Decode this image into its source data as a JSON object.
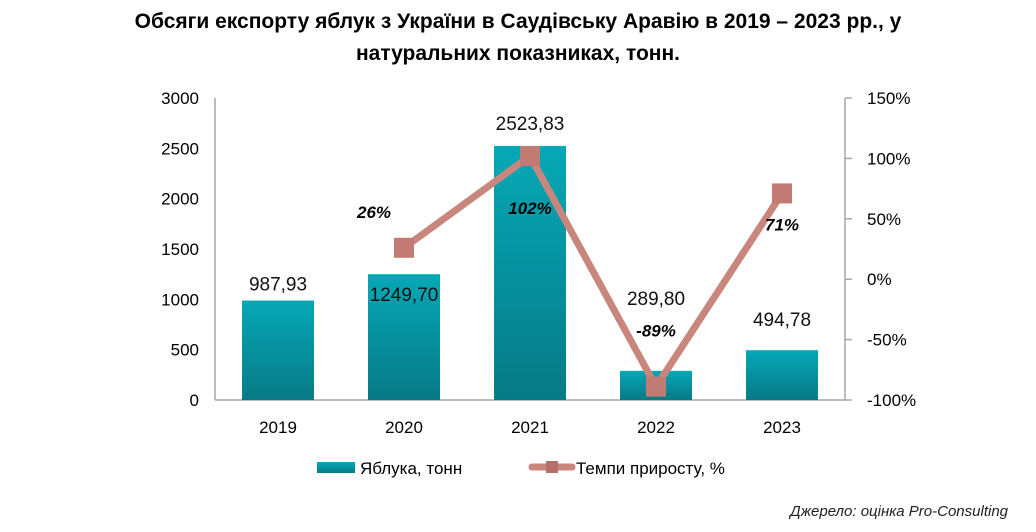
{
  "chart_data": {
    "type": "bar+line",
    "title_line1": "Обсяги експорту яблук з України в Саудівську Аравію в 2019 – 2023 рр., у",
    "title_line2": "натуральних показниках, тонн.",
    "categories": [
      "2019",
      "2020",
      "2021",
      "2022",
      "2023"
    ],
    "series": [
      {
        "name": "Яблука, тонн",
        "type": "bar",
        "axis": "left",
        "values": [
          987.93,
          1249.7,
          2523.83,
          289.8,
          494.78
        ],
        "labels": [
          "987,93",
          "1249,70",
          "2523,83",
          "289,80",
          "494,78"
        ],
        "color": "#0a9aa8"
      },
      {
        "name": "Темпи приросту, %",
        "type": "line",
        "axis": "right",
        "values": [
          null,
          26,
          102,
          -89,
          71
        ],
        "labels": [
          "",
          "26%",
          "102%",
          "-89%",
          "71%"
        ],
        "color": "#c8867d"
      }
    ],
    "left_axis": {
      "range": [
        0,
        3000
      ],
      "ticks": [
        "0",
        "500",
        "1000",
        "1500",
        "2000",
        "2500",
        "3000"
      ]
    },
    "right_axis": {
      "range": [
        -100,
        150
      ],
      "ticks": [
        "-100%",
        "-50%",
        "0%",
        "50%",
        "100%",
        "150%"
      ]
    },
    "grid": false,
    "legend": "bottom"
  },
  "source": "Джерело: оцінка Pro-Consulting"
}
